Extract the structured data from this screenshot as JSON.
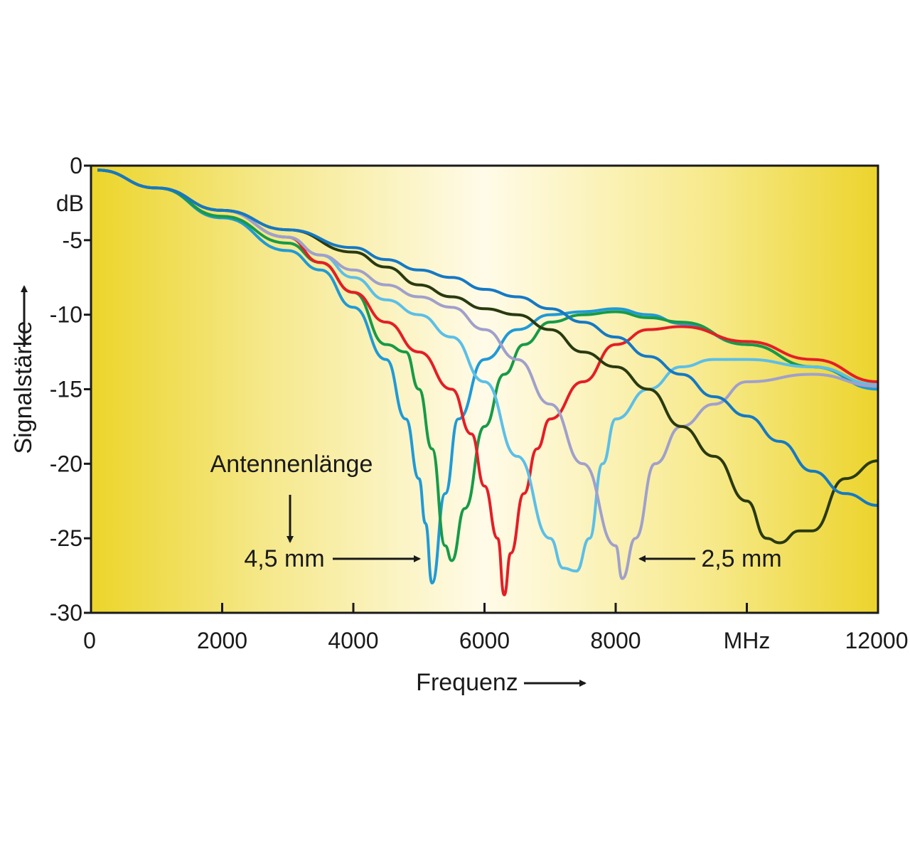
{
  "chart_data": {
    "type": "line",
    "title": "",
    "xlabel": "Frequenz",
    "ylabel": "Signalstärke",
    "y_unit": "dB",
    "x_unit": "MHz",
    "xlim": [
      0,
      12000
    ],
    "ylim": [
      -30,
      0
    ],
    "x_ticks": [
      0,
      2000,
      4000,
      6000,
      8000,
      10000,
      12000
    ],
    "x_tick_labels": [
      "0",
      "2000",
      "4000",
      "6000",
      "8000",
      "MHz",
      "12000"
    ],
    "y_ticks": [
      0,
      -5,
      -10,
      -15,
      -20,
      -25,
      -30
    ],
    "y_tick_labels": [
      "0",
      "-5",
      "-10",
      "-15",
      "-20",
      "-25",
      "-30"
    ],
    "grid": false,
    "background": "yellow radial gradient",
    "series": [
      {
        "color": "#1f9ad6",
        "x": [
          100,
          1000,
          2000,
          3000,
          3500,
          4000,
          4500,
          4800,
          5000,
          5100,
          5200,
          5400,
          5600,
          6000,
          6500,
          7000,
          7500,
          8000,
          8500,
          9000,
          10000,
          11000,
          12000
        ],
        "y": [
          -0.3,
          -1.5,
          -3.5,
          -5.7,
          -7.0,
          -9.5,
          -13.0,
          -17.0,
          -21.0,
          -24.0,
          -28.0,
          -22.0,
          -17.0,
          -13.0,
          -11.0,
          -10.0,
          -9.8,
          -9.6,
          -10.0,
          -10.6,
          -12.0,
          -13.5,
          -15.0
        ]
      },
      {
        "color": "#189a48",
        "x": [
          100,
          1000,
          2000,
          3000,
          3500,
          4000,
          4500,
          4800,
          5000,
          5200,
          5400,
          5500,
          5700,
          6000,
          6300,
          6600,
          7000,
          7500,
          8000,
          8500,
          9000,
          10000,
          11000,
          12000
        ],
        "y": [
          -0.3,
          -1.5,
          -3.4,
          -5.2,
          -6.5,
          -8.5,
          -12.0,
          -12.5,
          -15.0,
          -19.0,
          -25.5,
          -26.5,
          -23.0,
          -17.5,
          -14.0,
          -12.0,
          -10.5,
          -10.0,
          -9.8,
          -10.2,
          -10.5,
          -12.0,
          -13.5,
          -14.8
        ]
      },
      {
        "color": "#e41e26",
        "x": [
          100,
          1000,
          2000,
          3000,
          3500,
          4000,
          4500,
          5000,
          5500,
          5800,
          6000,
          6200,
          6300,
          6400,
          6600,
          6800,
          7000,
          7500,
          8000,
          8500,
          9000,
          10000,
          11000,
          12000
        ],
        "y": [
          -0.3,
          -1.5,
          -3.0,
          -4.8,
          -6.5,
          -8.5,
          -10.5,
          -12.5,
          -15.0,
          -18.0,
          -21.5,
          -25.0,
          -28.8,
          -26.0,
          -22.0,
          -19.0,
          -17.0,
          -14.5,
          -12.0,
          -11.0,
          -10.8,
          -11.8,
          -13.0,
          -14.5
        ]
      },
      {
        "color": "#5bbfe8",
        "x": [
          100,
          1000,
          2000,
          3000,
          3500,
          4000,
          4500,
          5000,
          5500,
          6000,
          6500,
          7000,
          7200,
          7400,
          7600,
          7800,
          8000,
          8500,
          9000,
          9500,
          10000,
          11000,
          12000
        ],
        "y": [
          -0.3,
          -1.5,
          -3.0,
          -4.8,
          -6.0,
          -7.5,
          -9.0,
          -10.0,
          -11.5,
          -14.5,
          -19.5,
          -25.0,
          -27.0,
          -27.2,
          -25.0,
          -20.0,
          -17.0,
          -15.0,
          -13.5,
          -13.0,
          -13.0,
          -13.5,
          -14.7
        ]
      },
      {
        "color": "#a0a0cc",
        "x": [
          100,
          1000,
          2000,
          3000,
          3500,
          4000,
          4500,
          5000,
          5500,
          6000,
          6500,
          7000,
          7500,
          8000,
          8100,
          8300,
          8600,
          9000,
          9500,
          10000,
          11000,
          12000
        ],
        "y": [
          -0.3,
          -1.5,
          -3.0,
          -4.8,
          -6.0,
          -7.0,
          -8.0,
          -8.8,
          -9.5,
          -11.0,
          -13.0,
          -16.0,
          -20.0,
          -25.5,
          -27.7,
          -25.0,
          -20.0,
          -17.5,
          -16.0,
          -14.5,
          -14.0,
          -14.8
        ]
      },
      {
        "color": "#2a3a10",
        "x": [
          100,
          1000,
          2000,
          3000,
          4000,
          4500,
          5000,
          5500,
          6000,
          6500,
          7000,
          7500,
          8000,
          8500,
          9000,
          9500,
          10000,
          10300,
          10500,
          10800,
          11000,
          11500,
          12000
        ],
        "y": [
          -0.3,
          -1.5,
          -3.0,
          -4.3,
          -5.8,
          -6.8,
          -8.0,
          -8.8,
          -9.6,
          -10.0,
          -11.0,
          -12.5,
          -13.5,
          -15.0,
          -17.5,
          -19.5,
          -22.5,
          -25.0,
          -25.3,
          -24.5,
          -24.5,
          -21.0,
          -19.8
        ]
      },
      {
        "color": "#1579c4",
        "x": [
          100,
          1000,
          2000,
          3000,
          4000,
          4500,
          5000,
          5500,
          6000,
          6500,
          7000,
          7500,
          8000,
          8500,
          9000,
          9500,
          10000,
          10500,
          11000,
          11500,
          12000
        ],
        "y": [
          -0.3,
          -1.5,
          -3.0,
          -4.3,
          -5.5,
          -6.3,
          -7.0,
          -7.5,
          -8.3,
          -8.8,
          -9.6,
          -10.5,
          -11.5,
          -12.8,
          -14.0,
          -15.5,
          -16.8,
          -18.5,
          -20.5,
          -22.0,
          -22.8
        ]
      }
    ],
    "annotations": {
      "label": "Antennenlänge",
      "left": "4,5 mm",
      "right": "2,5 mm"
    }
  }
}
